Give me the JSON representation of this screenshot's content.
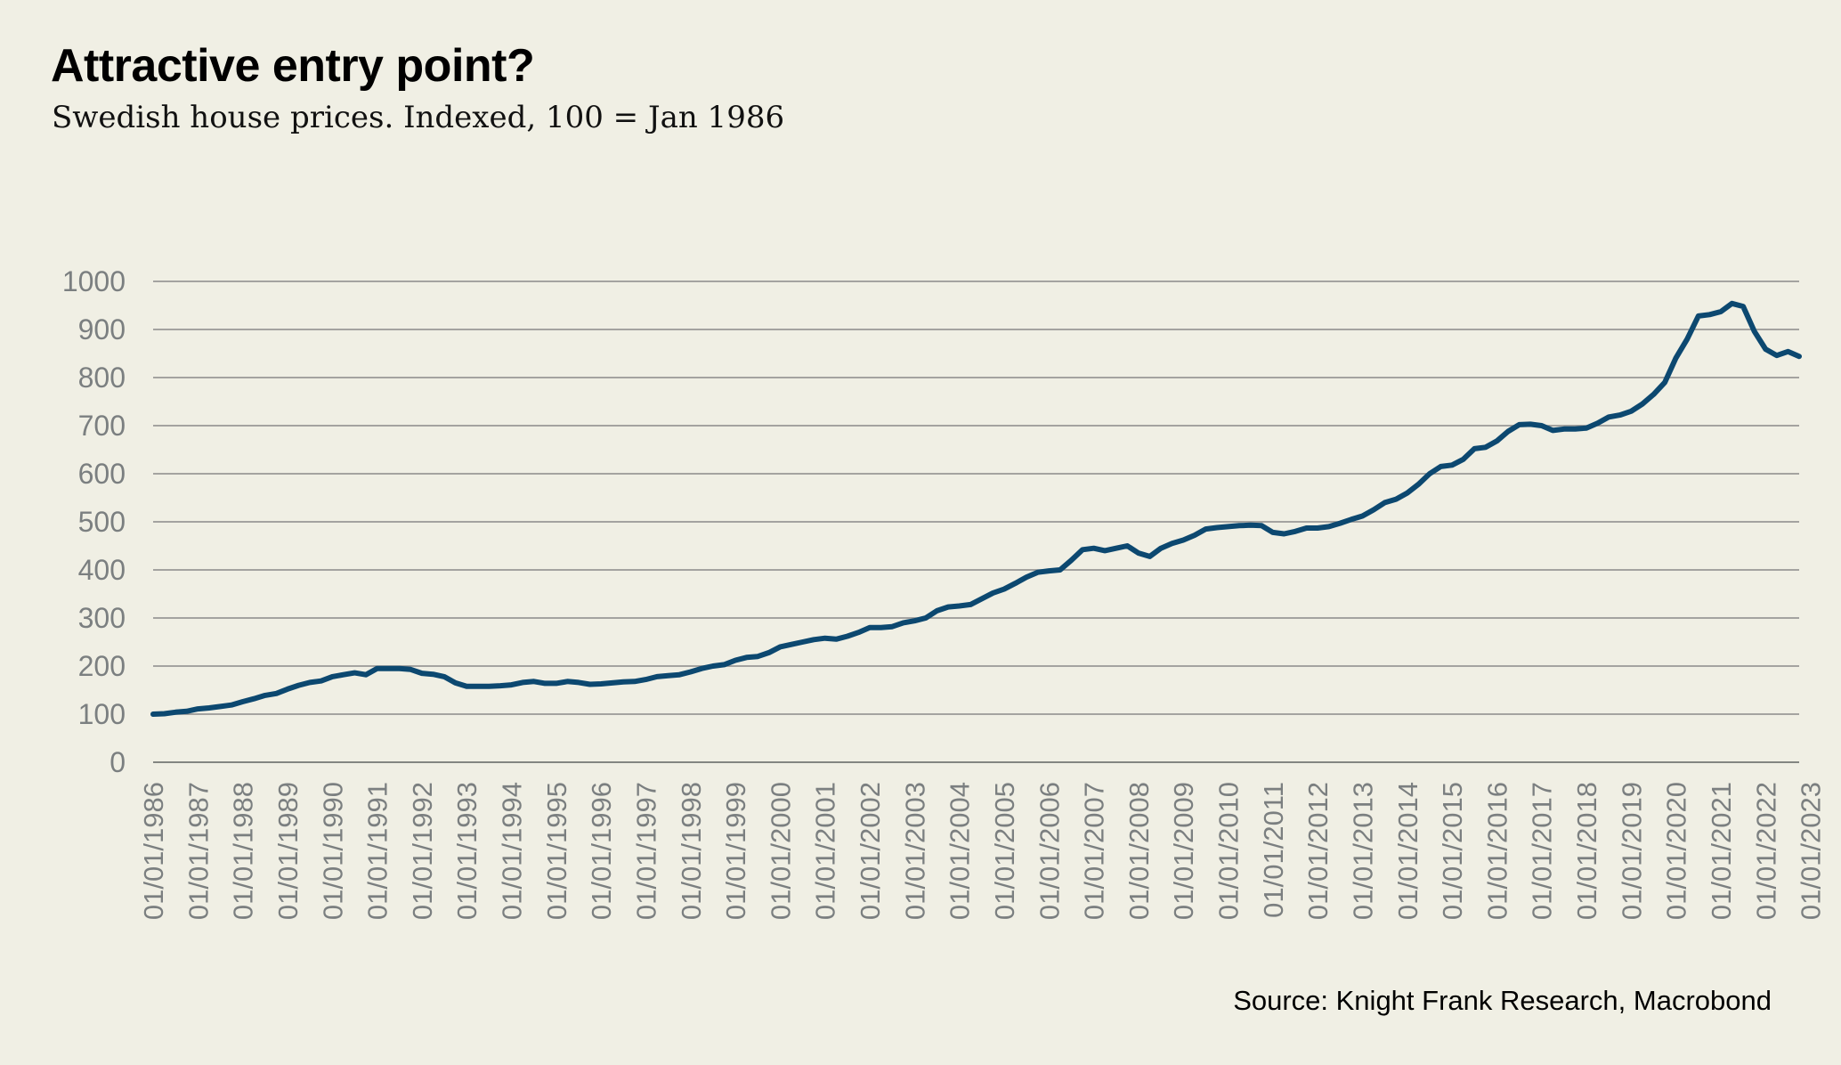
{
  "header": {
    "title": "Attractive entry point?",
    "subtitle": "Swedish house prices. Indexed, 100 = Jan 1986"
  },
  "footer": {
    "source": "Source: Knight Frank Research, Macrobond"
  },
  "colors": {
    "background": "#f0efe4",
    "line": "#0c4870",
    "grid": "#8a8a8a",
    "axis_text": "#7b7f80"
  },
  "chart_data": {
    "type": "line",
    "title": "Attractive entry point?",
    "subtitle": "Swedish house prices. Indexed, 100 = Jan 1986",
    "xlabel": "",
    "ylabel": "",
    "ylim": [
      0,
      1000
    ],
    "yticks": [
      0,
      100,
      200,
      300,
      400,
      500,
      600,
      700,
      800,
      900,
      1000
    ],
    "grid": true,
    "legend": "none",
    "frequency": "quarterly",
    "x_start": "1986-Q1",
    "x_end": "2023-Q4",
    "xtick_labels": [
      "01/01/1986",
      "01/01/1987",
      "01/01/1988",
      "01/01/1989",
      "01/01/1990",
      "01/01/1991",
      "01/01/1992",
      "01/01/1993",
      "01/01/1994",
      "01/01/1995",
      "01/01/1996",
      "01/01/1997",
      "01/01/1998",
      "01/01/1999",
      "01/01/2000",
      "01/01/2001",
      "01/01/2002",
      "01/01/2003",
      "01/01/2004",
      "01/01/2005",
      "01/01/2006",
      "01/01/2007",
      "01/01/2008",
      "01/01/2009",
      "01/01/2010",
      "01/01/2011",
      "01/01/2012",
      "01/01/2013",
      "01/01/2014",
      "01/01/2015",
      "01/01/2016",
      "01/01/2017",
      "01/01/2018",
      "01/01/2019",
      "01/01/2020",
      "01/01/2021",
      "01/01/2022",
      "01/01/2023"
    ],
    "series": [
      {
        "name": "Swedish house prices (index)",
        "values": [
          100,
          101,
          104,
          106,
          111,
          113,
          116,
          119,
          126,
          132,
          139,
          143,
          152,
          160,
          166,
          169,
          178,
          182,
          186,
          182,
          195,
          195,
          195,
          193,
          185,
          183,
          178,
          165,
          158,
          158,
          158,
          159,
          161,
          166,
          168,
          164,
          164,
          168,
          166,
          162,
          163,
          165,
          167,
          168,
          172,
          178,
          180,
          182,
          188,
          195,
          200,
          203,
          212,
          218,
          220,
          228,
          240,
          245,
          250,
          255,
          258,
          256,
          262,
          270,
          280,
          280,
          282,
          290,
          294,
          300,
          315,
          323,
          325,
          328,
          340,
          352,
          360,
          372,
          385,
          395,
          398,
          400,
          420,
          442,
          445,
          440,
          445,
          450,
          435,
          428,
          445,
          455,
          462,
          472,
          485,
          488,
          490,
          492,
          493,
          492,
          478,
          475,
          480,
          487,
          487,
          490,
          497,
          505,
          512,
          525,
          540,
          547,
          560,
          578,
          600,
          615,
          618,
          630,
          652,
          655,
          668,
          688,
          702,
          703,
          700,
          690,
          693,
          693,
          695,
          705,
          718,
          722,
          730,
          745,
          765,
          790,
          841,
          880,
          928,
          931,
          937,
          954,
          948,
          896,
          859,
          846,
          854,
          844
        ]
      }
    ]
  }
}
